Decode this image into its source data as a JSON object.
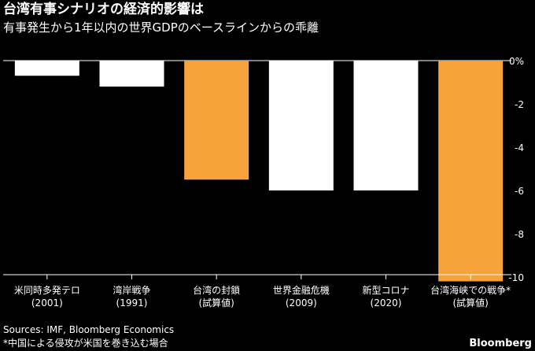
{
  "chart_data": {
    "type": "bar",
    "title": "台湾有事シナリオの経済的影響は",
    "subtitle": "有事発生から1年以内の世界GDPのベースラインからの乖離",
    "categories": [
      [
        "米同時多発テロ",
        "(2001)"
      ],
      [
        "湾岸戦争",
        "(1991)"
      ],
      [
        "台湾の封鎖",
        "(試算値)"
      ],
      [
        "世界金融危機",
        "(2009)"
      ],
      [
        "新型コロナ",
        "(2020)"
      ],
      [
        "台湾海峡での戦争*",
        "(試算値)"
      ]
    ],
    "values": [
      -0.7,
      -1.2,
      -5.5,
      -6.0,
      -6.0,
      -10.2
    ],
    "highlight": [
      false,
      false,
      true,
      false,
      false,
      true
    ],
    "yticks": [
      "0%",
      "-2",
      "-4",
      "-6",
      "-8",
      "-10"
    ],
    "ytick_values": [
      0,
      -2,
      -4,
      -6,
      -8,
      -10
    ],
    "ylim": [
      -10.2,
      0
    ],
    "colors": {
      "default": "#ffffff",
      "highlight": "#f7a23b",
      "background": "#000000",
      "axis": "#ffffff"
    },
    "ylabel": "",
    "xlabel": ""
  },
  "footer": {
    "sources": "Sources: IMF, Bloomberg Economics",
    "note": "*中国による侵攻が米国を巻き込む場合",
    "brand": "Bloomberg"
  }
}
